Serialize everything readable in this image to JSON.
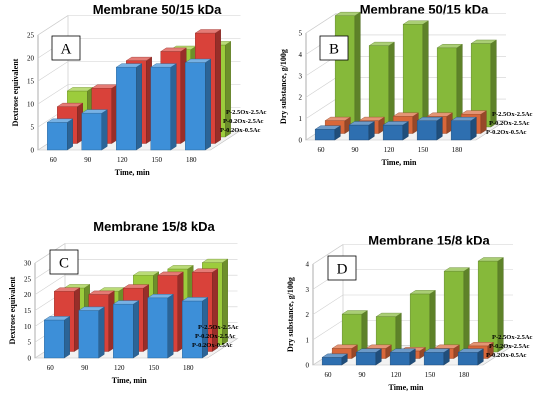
{
  "chart_data": [
    {
      "type": "bar",
      "panel": "A",
      "title": "Membrane 50/15 kDa",
      "xlabel": "Time, min",
      "ylabel": "Dextrose equivalent",
      "categories": [
        "60",
        "90",
        "120",
        "150",
        "180"
      ],
      "ylim": [
        0,
        25
      ],
      "yticks": [
        0,
        5,
        10,
        15,
        20,
        25
      ],
      "series": [
        {
          "name": "P-0.2Ox-0.5Ac",
          "color": "#3d8fd8",
          "values": [
            6,
            8,
            18,
            18,
            19
          ]
        },
        {
          "name": "P-0.2Ox-2.5Ac",
          "color": "#d9423a",
          "values": [
            8,
            12,
            18,
            20,
            24
          ]
        },
        {
          "name": "P-2.5Ox-2.5Ac",
          "color": "#9ccc3c",
          "values": [
            10,
            9,
            13,
            19,
            20
          ]
        }
      ]
    },
    {
      "type": "bar",
      "panel": "B",
      "title": "Membrane 50/15 kDa",
      "xlabel": "Time, min",
      "ylabel": "Dry substance, g/100g",
      "categories": [
        "60",
        "90",
        "120",
        "150",
        "180"
      ],
      "ylim": [
        0,
        5
      ],
      "yticks": [
        0,
        1,
        2,
        3,
        4,
        5
      ],
      "series": [
        {
          "name": "P-0.2Ox-0.5Ac",
          "color": "#2e6fb0",
          "values": [
            0.5,
            0.7,
            0.7,
            0.9,
            0.9
          ]
        },
        {
          "name": "P-0.2Ox-2.5Ac",
          "color": "#d8673a",
          "values": [
            0.6,
            0.6,
            0.8,
            0.8,
            0.9
          ]
        },
        {
          "name": "P-2.5Ox-2.5Ac",
          "color": "#86b93a",
          "values": [
            5.2,
            3.8,
            4.8,
            3.7,
            3.9
          ]
        }
      ]
    },
    {
      "type": "bar",
      "panel": "C",
      "title": "Membrane 15/8 kDa",
      "xlabel": "Time, min",
      "ylabel": "Dextrose equivalent",
      "categories": [
        "60",
        "90",
        "120",
        "150",
        "180"
      ],
      "ylim": [
        0,
        30
      ],
      "yticks": [
        0,
        5,
        10,
        15,
        20,
        25,
        30
      ],
      "series": [
        {
          "name": "P-0.2Ox-0.5Ac",
          "color": "#3d8fd8",
          "values": [
            12,
            15,
            17,
            19,
            18
          ]
        },
        {
          "name": "P-0.2Ox-2.5Ac",
          "color": "#d9423a",
          "values": [
            19,
            18,
            20,
            24,
            25
          ]
        },
        {
          "name": "P-2.5Ox-2.5Ac",
          "color": "#9ccc3c",
          "values": [
            18,
            17,
            22,
            24,
            26
          ]
        }
      ]
    },
    {
      "type": "bar",
      "panel": "D",
      "title": "Membrane 15/8 kDa",
      "xlabel": "Time, min",
      "ylabel": "Dry substance, g/100g",
      "categories": [
        "60",
        "90",
        "120",
        "150",
        "180"
      ],
      "ylim": [
        0,
        4
      ],
      "yticks": [
        0,
        1,
        2,
        3,
        4
      ],
      "series": [
        {
          "name": "P-0.2Ox-0.5Ac",
          "color": "#2e6fb0",
          "values": [
            0.3,
            0.5,
            0.5,
            0.5,
            0.5
          ]
        },
        {
          "name": "P-0.2Ox-2.5Ac",
          "color": "#d8673a",
          "values": [
            0.4,
            0.4,
            0.3,
            0.4,
            0.5
          ]
        },
        {
          "name": "P-2.5Ox-2.5Ac",
          "color": "#86b93a",
          "values": [
            1.5,
            1.4,
            2.3,
            3.2,
            3.6
          ]
        }
      ]
    }
  ]
}
